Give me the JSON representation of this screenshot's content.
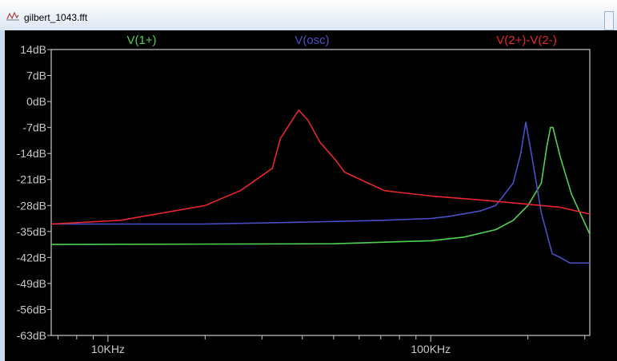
{
  "window": {
    "title": "gilbert_1043.fft",
    "icon": "waveform-icon"
  },
  "chart_data": {
    "type": "line",
    "title": "",
    "xlabel": "",
    "ylabel": "",
    "xscale": "log",
    "xlim": [
      6670,
      311000
    ],
    "ylim": [
      -63,
      14
    ],
    "grid": false,
    "background": "#000000",
    "yticks": [
      14,
      7,
      0,
      -7,
      -14,
      -21,
      -28,
      -35,
      -42,
      -49,
      -56,
      -63
    ],
    "ytick_labels": [
      "14dB",
      "7dB",
      "0dB",
      "-7dB",
      "-14dB",
      "-21dB",
      "-28dB",
      "-35dB",
      "-42dB",
      "-49dB",
      "-56dB",
      "-63dB"
    ],
    "xticks_labeled": [
      10000,
      100000
    ],
    "xtick_labels": [
      "10KHz",
      "100KHz"
    ],
    "xticks_minor": [
      7000,
      8000,
      9000,
      20000,
      30000,
      40000,
      50000,
      60000,
      70000,
      80000,
      90000,
      200000,
      300000
    ],
    "legend_placement": "top",
    "series": [
      {
        "name": "V(1+)",
        "color": "#4fd24f",
        "x": [
          6670,
          50000,
          100000,
          127000,
          159000,
          180000,
          200000,
          220000,
          229000,
          235000,
          239000,
          252000,
          273000,
          311000
        ],
        "y": [
          -38.5,
          -38.3,
          -37.5,
          -36.5,
          -34.5,
          -32,
          -28,
          -22,
          -12,
          -7,
          -7,
          -15,
          -25,
          -35.7
        ]
      },
      {
        "name": "V(osc)",
        "color": "#4a4fc8",
        "x": [
          6670,
          20000,
          40000,
          70000,
          100000,
          113000,
          142000,
          159000,
          180000,
          190000,
          197000,
          206000,
          220000,
          238000,
          252000,
          270000,
          311000
        ],
        "y": [
          -33,
          -33,
          -32.5,
          -32,
          -31.5,
          -31,
          -29.5,
          -28,
          -22,
          -14,
          -5.6,
          -15,
          -30,
          -41,
          -42,
          -43.5,
          -43.5
        ]
      },
      {
        "name": "V(2+)-V(2-)",
        "color": "#e8262b",
        "x": [
          6670,
          10900,
          20000,
          25700,
          32300,
          34200,
          39000,
          41600,
          45400,
          51000,
          54000,
          64000,
          72000,
          101000,
          142000,
          190000,
          252000,
          311000
        ],
        "y": [
          -33,
          -32,
          -28,
          -24,
          -18,
          -10,
          -2.3,
          -5,
          -11,
          -16,
          -19,
          -22,
          -24,
          -25.5,
          -26.5,
          -27.5,
          -28.5,
          -30.3
        ]
      }
    ]
  }
}
